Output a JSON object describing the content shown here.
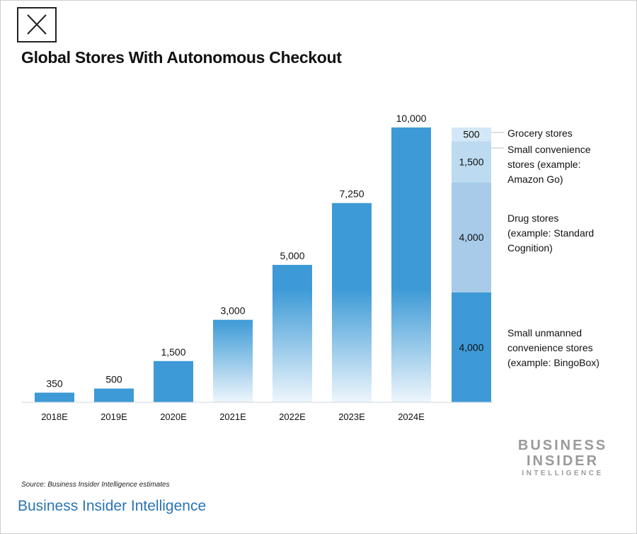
{
  "title": "Global Stores With Autonomous Checkout",
  "source": "Source: Business Insider Intelligence estimates",
  "footer_link": "Business Insider Intelligence",
  "brand": {
    "line1": "BUSINESS",
    "line2": "INSIDER",
    "line3": "INTELLIGENCE"
  },
  "icons": {
    "close": "close-icon"
  },
  "colors": {
    "bar": "#3d9ad6",
    "segment_light1": "#d3e8f6",
    "segment_light2": "#bcdaf0",
    "segment_mid": "#a7cbe9",
    "segment_dark": "#3d9ad6"
  },
  "chart_data": {
    "type": "bar",
    "title": "Global Stores With Autonomous Checkout",
    "xlabel": "",
    "ylabel": "",
    "categories": [
      "2018E",
      "2019E",
      "2020E",
      "2021E",
      "2022E",
      "2023E",
      "2024E"
    ],
    "values": [
      350,
      500,
      1500,
      3000,
      5000,
      7250,
      10000
    ],
    "data_labels": [
      "350",
      "500",
      "1,500",
      "3,000",
      "5,000",
      "7,250",
      "10,000"
    ],
    "ylim": [
      0,
      10000
    ],
    "grid": false,
    "breakdown": {
      "segments": [
        {
          "name": "Small unmanned convenience stores (example: BingoBox)",
          "label_lines": [
            "Small unmanned",
            "convenience stores",
            "(example: BingoBox)"
          ],
          "value": 4000,
          "value_label": "4,000"
        },
        {
          "name": "Drug stores (example: Standard Cognition)",
          "label_lines": [
            "Drug stores",
            "(example: Standard",
            "Cognition)"
          ],
          "value": 4000,
          "value_label": "4,000"
        },
        {
          "name": "Small convenience stores (example: Amazon Go)",
          "label_lines": [
            "Small convenience",
            "stores (example:",
            "Amazon Go)"
          ],
          "value": 1500,
          "value_label": "1,500"
        },
        {
          "name": "Grocery stores",
          "label_lines": [
            "Grocery stores"
          ],
          "value": 500,
          "value_label": "500"
        }
      ]
    }
  }
}
